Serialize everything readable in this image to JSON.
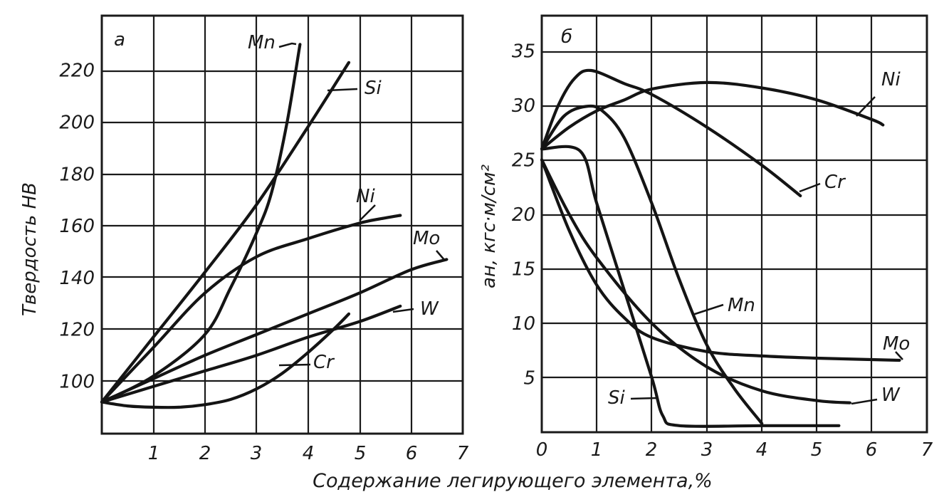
{
  "xlabel": "Содержание легирующего элемента,%",
  "chart_data": [
    {
      "type": "line",
      "panel_label": "а",
      "ylabel": "Твердость НВ",
      "xlim": [
        0,
        7
      ],
      "ylim": [
        85,
        240
      ],
      "x_ticks": [
        "1",
        "2",
        "3",
        "4",
        "5",
        "6",
        "7"
      ],
      "y_ticks": [
        "100",
        "120",
        "140",
        "160",
        "180",
        "200",
        "220"
      ],
      "y_tick_values": [
        100,
        120,
        140,
        160,
        180,
        200,
        220
      ],
      "grid": true,
      "series": [
        {
          "name": "Mn",
          "points": [
            [
              0,
              92
            ],
            [
              1,
              102
            ],
            [
              2,
              118
            ],
            [
              2.5,
              136
            ],
            [
              3,
              157
            ],
            [
              3.3,
              173
            ],
            [
              3.6,
              200
            ],
            [
              3.85,
              230
            ]
          ]
        },
        {
          "name": "Si",
          "points": [
            [
              0,
              92
            ],
            [
              1,
              117
            ],
            [
              2,
              142
            ],
            [
              3,
              168
            ],
            [
              4,
              198
            ],
            [
              4.8,
              223
            ]
          ]
        },
        {
          "name": "Ni",
          "points": [
            [
              0,
              92
            ],
            [
              1,
              113
            ],
            [
              2,
              134
            ],
            [
              3,
              148
            ],
            [
              4,
              155
            ],
            [
              5,
              161
            ],
            [
              5.5,
              163
            ],
            [
              5.8,
              164
            ]
          ]
        },
        {
          "name": "Mo",
          "points": [
            [
              0,
              92
            ],
            [
              1,
              101
            ],
            [
              2,
              110
            ],
            [
              3,
              118
            ],
            [
              4,
              126
            ],
            [
              5,
              134
            ],
            [
              6,
              143
            ],
            [
              6.7,
              147
            ]
          ]
        },
        {
          "name": "W",
          "points": [
            [
              0,
              92
            ],
            [
              1,
              98
            ],
            [
              2,
              104
            ],
            [
              3,
              110
            ],
            [
              4,
              117
            ],
            [
              5,
              123
            ],
            [
              5.8,
              129
            ]
          ]
        },
        {
          "name": "Cr",
          "points": [
            [
              0,
              92
            ],
            [
              0.5,
              90.5
            ],
            [
              1,
              90
            ],
            [
              1.5,
              90
            ],
            [
              2,
              91
            ],
            [
              2.5,
              93
            ],
            [
              3,
              97
            ],
            [
              3.5,
              103
            ],
            [
              4,
              111
            ],
            [
              4.5,
              120
            ],
            [
              4.8,
              126
            ]
          ]
        }
      ]
    },
    {
      "type": "line",
      "panel_label": "б",
      "ylabel": "aн, кгс·м/см²",
      "xlim": [
        0,
        7
      ],
      "ylim": [
        0,
        38
      ],
      "x_ticks": [
        "0",
        "1",
        "2",
        "3",
        "4",
        "5",
        "6",
        "7"
      ],
      "y_ticks": [
        "5",
        "10",
        "15",
        "20",
        "25",
        "30",
        "35"
      ],
      "y_tick_values": [
        5,
        10,
        15,
        20,
        25,
        30,
        35
      ],
      "grid": true,
      "series": [
        {
          "name": "Ni",
          "points": [
            [
              0,
              26
            ],
            [
              0.5,
              28
            ],
            [
              1,
              29.5
            ],
            [
              1.5,
              30.5
            ],
            [
              2,
              31.5
            ],
            [
              3,
              32.1
            ],
            [
              4,
              31.6
            ],
            [
              5,
              30.5
            ],
            [
              6,
              28.7
            ],
            [
              6.2,
              28.2
            ]
          ]
        },
        {
          "name": "Cr",
          "points": [
            [
              0,
              26
            ],
            [
              0.3,
              30
            ],
            [
              0.6,
              32.5
            ],
            [
              0.9,
              33.2
            ],
            [
              1.5,
              32
            ],
            [
              2,
              31
            ],
            [
              3,
              28
            ],
            [
              4,
              24.5
            ],
            [
              4.7,
              21.7
            ]
          ]
        },
        {
          "name": "Mn",
          "points": [
            [
              0,
              26
            ],
            [
              0.4,
              29
            ],
            [
              0.8,
              29.9
            ],
            [
              1.1,
              29.5
            ],
            [
              1.5,
              27
            ],
            [
              2,
              21
            ],
            [
              2.5,
              14
            ],
            [
              3,
              8
            ],
            [
              3.5,
              4
            ],
            [
              4,
              0.8
            ]
          ]
        },
        {
          "name": "Si",
          "points": [
            [
              0,
              26
            ],
            [
              0.7,
              25.8
            ],
            [
              1,
              21
            ],
            [
              1.5,
              13
            ],
            [
              2,
              5
            ],
            [
              2.2,
              1.5
            ],
            [
              2.5,
              0.6
            ],
            [
              4,
              0.6
            ],
            [
              5.4,
              0.6
            ]
          ]
        },
        {
          "name": "Mo",
          "points": [
            [
              0,
              25
            ],
            [
              0.5,
              18.5
            ],
            [
              1,
              13.5
            ],
            [
              1.5,
              10.5
            ],
            [
              2,
              8.7
            ],
            [
              3,
              7.4
            ],
            [
              4,
              7
            ],
            [
              5,
              6.8
            ],
            [
              6.5,
              6.6
            ]
          ]
        },
        {
          "name": "W",
          "points": [
            [
              0,
              25
            ],
            [
              0.5,
              20
            ],
            [
              1,
              16
            ],
            [
              2,
              10
            ],
            [
              3,
              6
            ],
            [
              4,
              3.8
            ],
            [
              5,
              2.9
            ],
            [
              5.6,
              2.7
            ]
          ]
        }
      ]
    }
  ]
}
